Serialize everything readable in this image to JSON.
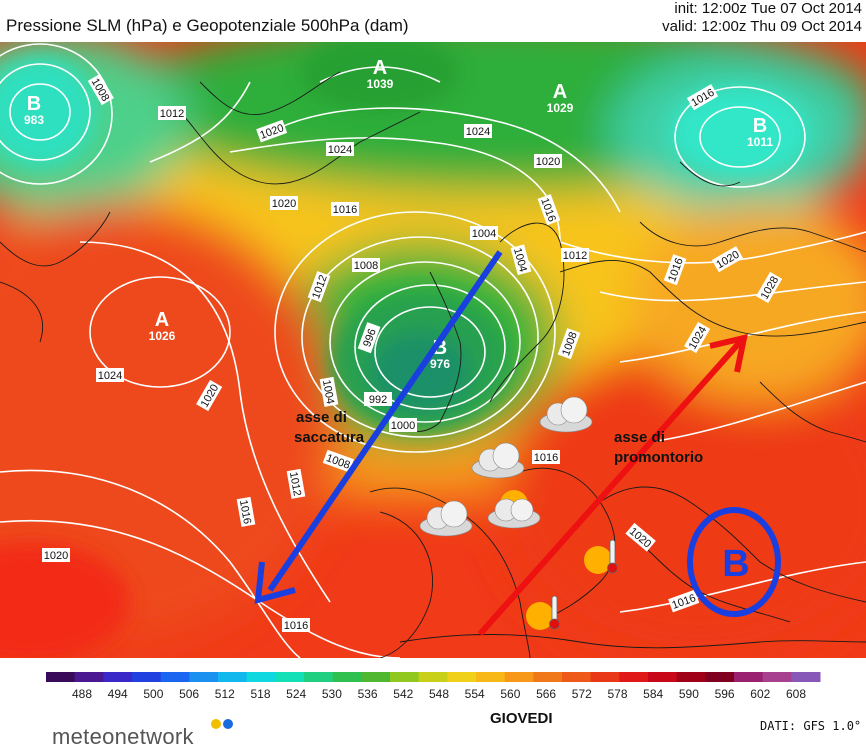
{
  "header": {
    "title": "Pressione SLM (hPa) e Geopotenziale 500hPa (dam)",
    "init": "init: 12:00z Tue 07 Oct 2014",
    "valid": "valid: 12:00z Thu 09 Oct 2014"
  },
  "map": {
    "centers": [
      {
        "letter": "B",
        "value": "983"
      },
      {
        "letter": "A",
        "value": "1039"
      },
      {
        "letter": "A",
        "value": "1029"
      },
      {
        "letter": "B",
        "value": "1011"
      },
      {
        "letter": "A",
        "value": "1026"
      },
      {
        "letter": "B",
        "value": "976"
      }
    ],
    "isobar_labels": [
      "1008",
      "1012",
      "1016",
      "1020",
      "1024",
      "1004",
      "1000",
      "996",
      "992",
      "1028"
    ],
    "annotations": {
      "trough": [
        "asse di",
        "saccatura"
      ],
      "ridge": [
        "asse di",
        "promontorio"
      ],
      "highlight_letter": "B"
    },
    "colors": {
      "trough_arrow": "#1a3fe0",
      "ridge_arrow": "#ee1111",
      "highlight_circle": "#1a3fe0"
    },
    "weather_icons": [
      "cloud-icon",
      "cloud-icon",
      "cloud-sun-icon",
      "cloud-icon",
      "cloud-icon",
      "hot-sun-thermometer-icon",
      "hot-sun-thermometer-icon"
    ]
  },
  "scale": {
    "ticks": [
      "488",
      "494",
      "500",
      "506",
      "512",
      "518",
      "524",
      "530",
      "536",
      "542",
      "548",
      "554",
      "560",
      "566",
      "572",
      "578",
      "584",
      "590",
      "596",
      "602",
      "608"
    ]
  },
  "footer": {
    "brand": "meteonetwork",
    "day": "GIOVEDI",
    "dati": "DATI: GFS 1.0°"
  }
}
